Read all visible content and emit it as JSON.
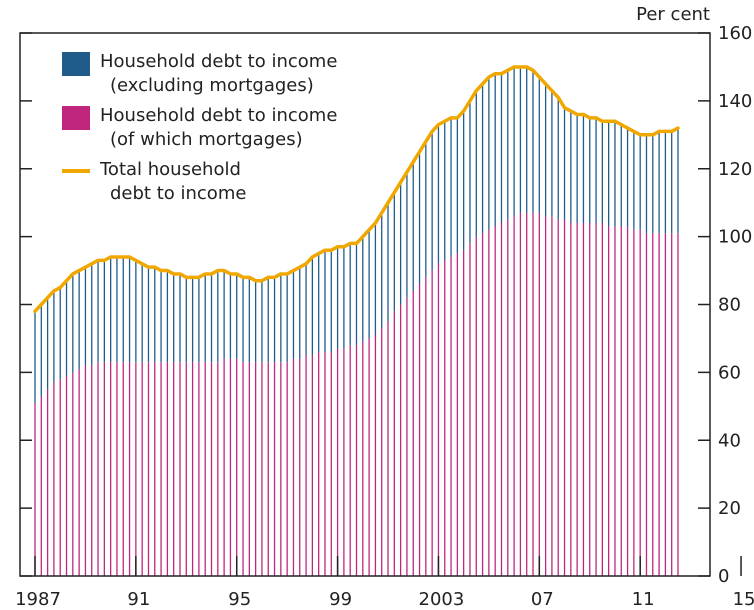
{
  "chart_data": {
    "type": "bar",
    "title": "",
    "unit_label": "Per cent",
    "ylim": [
      0,
      160
    ],
    "y_ticks": [
      "0",
      "20",
      "40",
      "60",
      "80",
      "100",
      "120",
      "140",
      "160"
    ],
    "x_tick_labels": [
      "1987",
      "91",
      "95",
      "99",
      "2003",
      "07",
      "11",
      "15"
    ],
    "x_tick_years": [
      1987,
      1991,
      1995,
      1999,
      2003,
      2007,
      2011,
      2015
    ],
    "x_start": 1987,
    "quarters_per_year": 4,
    "colors": {
      "non_mortgage": "#1f5c8c",
      "mortgage": "#c0267e",
      "total": "#f0a800",
      "axis": "#222222"
    },
    "legend": [
      {
        "series": "non_mortgage",
        "line1": "Household debt to income",
        "line2": "(excluding mortgages)"
      },
      {
        "series": "mortgage",
        "line1": "Household debt to income",
        "line2": "(of which mortgages)"
      },
      {
        "series": "total",
        "line1": "Total household",
        "line2": "debt to income"
      }
    ],
    "series": [
      {
        "name": "Total household debt to income",
        "key": "total",
        "values": [
          78,
          80,
          82,
          84,
          85,
          87,
          89,
          90,
          91,
          92,
          93,
          93,
          94,
          94,
          94,
          94,
          93,
          92,
          91,
          91,
          90,
          90,
          89,
          89,
          88,
          88,
          88,
          89,
          89,
          90,
          90,
          89,
          89,
          88,
          88,
          87,
          87,
          88,
          88,
          89,
          89,
          90,
          91,
          92,
          94,
          95,
          96,
          96,
          97,
          97,
          98,
          98,
          100,
          102,
          104,
          107,
          110,
          113,
          116,
          119,
          122,
          125,
          128,
          131,
          133,
          134,
          135,
          135,
          137,
          140,
          143,
          145,
          147,
          148,
          148,
          149,
          150,
          150,
          150,
          149,
          147,
          145,
          143,
          141,
          138,
          137,
          136,
          136,
          135,
          135,
          134,
          134,
          134,
          133,
          132,
          131,
          130,
          130,
          130,
          131,
          131,
          131,
          132
        ]
      },
      {
        "name": "Household debt to income (of which mortgages)",
        "key": "mortgage",
        "values": [
          51,
          53,
          55,
          57,
          58,
          59,
          60,
          61,
          62,
          62,
          63,
          63,
          63,
          63,
          63,
          63,
          63,
          63,
          63,
          63,
          63,
          63,
          63,
          63,
          63,
          63,
          63,
          63,
          63,
          63,
          64,
          64,
          64,
          63,
          63,
          63,
          63,
          63,
          63,
          63,
          63,
          64,
          64,
          65,
          65,
          66,
          66,
          66,
          67,
          67,
          68,
          68,
          69,
          70,
          71,
          73,
          75,
          78,
          80,
          82,
          84,
          86,
          88,
          90,
          92,
          93,
          94,
          95,
          96,
          98,
          100,
          101,
          102,
          103,
          104,
          105,
          106,
          107,
          107,
          107,
          107,
          106,
          106,
          105,
          105,
          104,
          104,
          104,
          104,
          104,
          104,
          103,
          103,
          103,
          103,
          102,
          102,
          101,
          101,
          101,
          101,
          101,
          101
        ]
      }
    ]
  }
}
